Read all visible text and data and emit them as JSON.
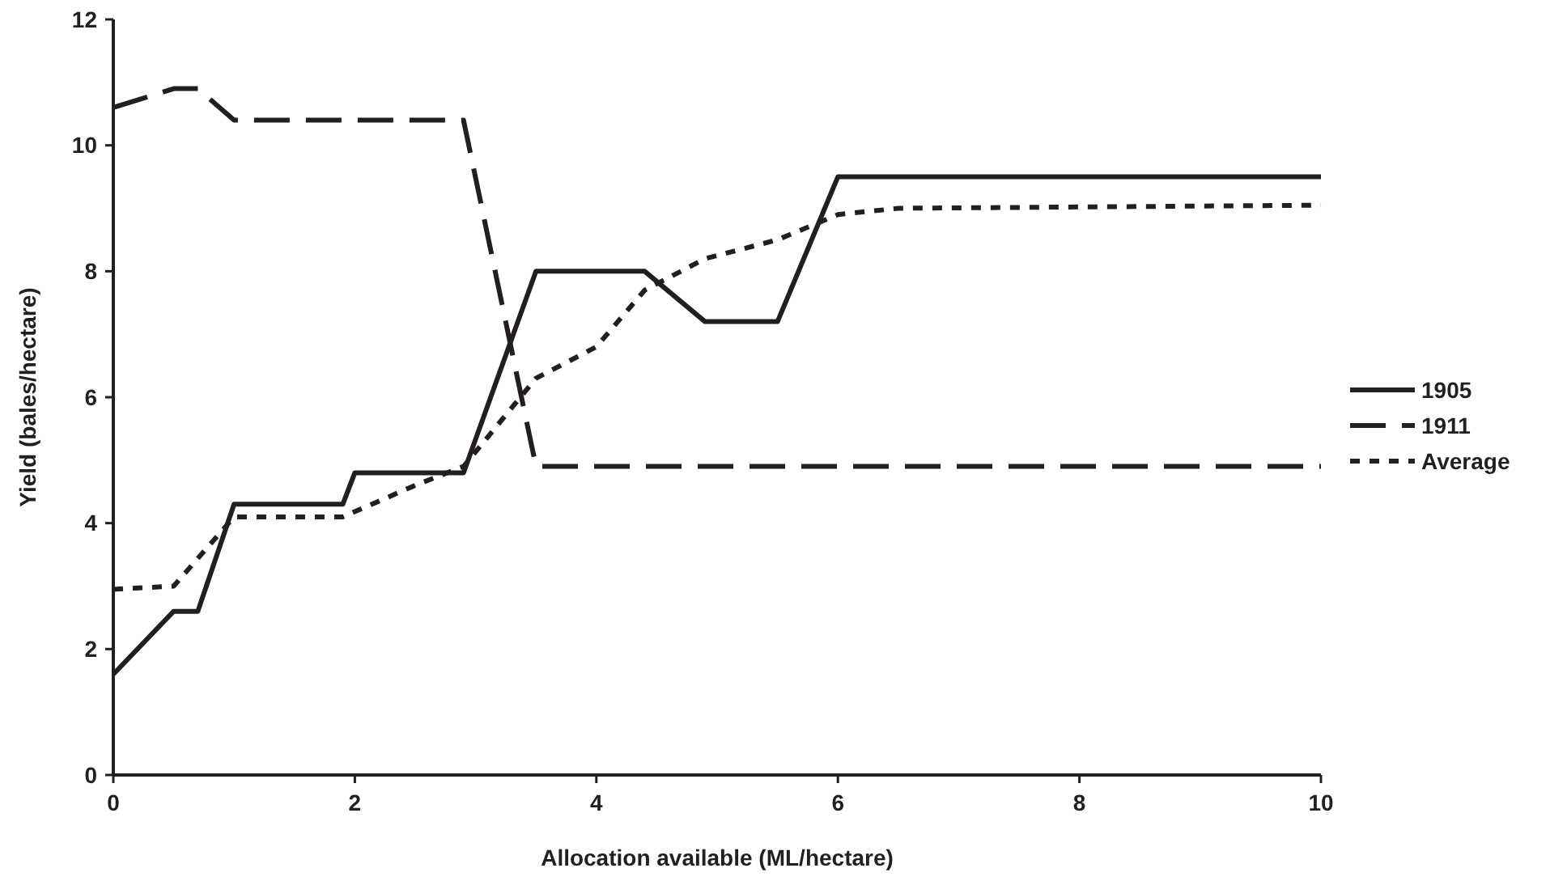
{
  "chart_data": {
    "type": "line",
    "xlabel": "Allocation available (ML/hectare)",
    "ylabel": "Yield (bales/hectare)",
    "xlim": [
      0,
      10
    ],
    "ylim": [
      0,
      12
    ],
    "xticks": [
      0,
      2,
      4,
      6,
      8,
      10
    ],
    "yticks": [
      0,
      2,
      4,
      6,
      8,
      10,
      12
    ],
    "grid": false,
    "legend": "right",
    "marker": "none",
    "series": [
      {
        "name": "1905",
        "color": "#231f20",
        "line_style": "solid",
        "x": [
          0,
          0.5,
          0.7,
          1,
          1.9,
          2,
          2.9,
          3.5,
          4.4,
          4.9,
          5.5,
          6,
          10
        ],
        "values": [
          1.6,
          2.6,
          2.6,
          4.3,
          4.3,
          4.8,
          4.8,
          8,
          8,
          7.2,
          7.2,
          9.5,
          9.5
        ]
      },
      {
        "name": "1911",
        "color": "#231f20",
        "line_style": "dashed",
        "x": [
          0,
          0.5,
          0.7,
          1,
          2.9,
          3.5,
          10
        ],
        "values": [
          10.6,
          10.9,
          10.9,
          10.4,
          10.4,
          4.9,
          4.9
        ]
      },
      {
        "name": "Average",
        "color": "#231f20",
        "line_style": "dotted",
        "x": [
          0,
          0.5,
          1,
          1.9,
          2.5,
          2.9,
          3.5,
          4,
          4.4,
          4.9,
          5.5,
          6,
          6.5,
          10
        ],
        "values": [
          2.95,
          3,
          4.1,
          4.1,
          4.6,
          4.9,
          6.3,
          6.8,
          7.7,
          8.2,
          8.5,
          8.9,
          9,
          9.05
        ]
      }
    ]
  }
}
